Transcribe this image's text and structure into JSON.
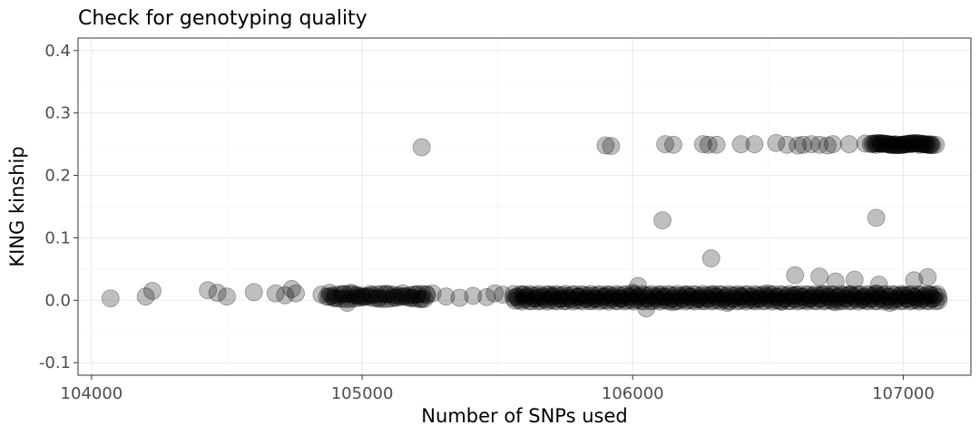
{
  "chart_data": {
    "type": "scatter",
    "title": "Check for genotyping quality",
    "xlabel": "Number of SNPs used",
    "ylabel": "KING kinship",
    "xlim": [
      103950,
      107250
    ],
    "ylim": [
      -0.12,
      0.42
    ],
    "xticks": [
      104000,
      105000,
      106000,
      107000
    ],
    "xtick_labels": [
      "104000",
      "105000",
      "106000",
      "107000"
    ],
    "yticks": [
      -0.1,
      0.0,
      0.1,
      0.2,
      0.3,
      0.4
    ],
    "ytick_labels": [
      "-0.1",
      "0.0",
      "0.1",
      "0.2",
      "0.3",
      "0.4"
    ],
    "grid": true,
    "legend": "none",
    "point_color": "#000000",
    "point_alpha": 0.25,
    "points": [
      [
        104070,
        0.003
      ],
      [
        104200,
        0.006
      ],
      [
        104225,
        0.015
      ],
      [
        104430,
        0.016
      ],
      [
        104465,
        0.012
      ],
      [
        104500,
        0.006
      ],
      [
        104600,
        0.013
      ],
      [
        104680,
        0.011
      ],
      [
        104715,
        0.008
      ],
      [
        104740,
        0.018
      ],
      [
        104755,
        0.011
      ],
      [
        104850,
        0.009
      ],
      [
        104880,
        0.012
      ],
      [
        104900,
        0.003
      ],
      [
        104930,
        0.01
      ],
      [
        104945,
        -0.004
      ],
      [
        104960,
        0.012
      ],
      [
        104980,
        0.007
      ],
      [
        105000,
        0.005
      ],
      [
        105030,
        0.01
      ],
      [
        105060,
        0.004
      ],
      [
        105090,
        0.01
      ],
      [
        105120,
        0.005
      ],
      [
        105150,
        0.011
      ],
      [
        105180,
        0.004
      ],
      [
        105200,
        0.009
      ],
      [
        105220,
        0.002
      ],
      [
        105240,
        0.008
      ],
      [
        105260,
        0.011
      ],
      [
        105310,
        0.006
      ],
      [
        105360,
        0.004
      ],
      [
        105410,
        0.007
      ],
      [
        105460,
        0.005
      ],
      [
        105490,
        0.011
      ],
      [
        105520,
        0.009
      ],
      [
        105560,
        0.004
      ],
      [
        105600,
        0.009
      ],
      [
        105650,
        0.004
      ],
      [
        105700,
        0.008
      ],
      [
        105750,
        0.003
      ],
      [
        105800,
        0.006
      ],
      [
        105850,
        0.002
      ],
      [
        105900,
        0.007
      ],
      [
        105950,
        0.003
      ],
      [
        106000,
        0.012
      ],
      [
        106050,
        -0.013
      ],
      [
        106100,
        0.006
      ],
      [
        106150,
        -0.003
      ],
      [
        106200,
        0.008
      ],
      [
        106250,
        0.002
      ],
      [
        106300,
        0.009
      ],
      [
        106350,
        -0.004
      ],
      [
        106400,
        0.007
      ],
      [
        106450,
        0.002
      ],
      [
        106500,
        0.011
      ],
      [
        106550,
        -0.002
      ],
      [
        106600,
        0.008
      ],
      [
        106650,
        0.003
      ],
      [
        106700,
        0.01
      ],
      [
        106750,
        -0.003
      ],
      [
        106800,
        0.009
      ],
      [
        106850,
        0.002
      ],
      [
        106900,
        0.011
      ],
      [
        106950,
        -0.004
      ],
      [
        107000,
        0.008
      ],
      [
        107050,
        0.003
      ],
      [
        107100,
        0.009
      ],
      [
        107130,
        0.005
      ],
      [
        105220,
        0.245
      ],
      [
        105900,
        0.248
      ],
      [
        105920,
        0.247
      ],
      [
        106120,
        0.25
      ],
      [
        106150,
        0.249
      ],
      [
        106260,
        0.25
      ],
      [
        106280,
        0.249
      ],
      [
        106310,
        0.249
      ],
      [
        106400,
        0.25
      ],
      [
        106450,
        0.25
      ],
      [
        106530,
        0.252
      ],
      [
        106570,
        0.249
      ],
      [
        106610,
        0.248
      ],
      [
        106630,
        0.249
      ],
      [
        106660,
        0.25
      ],
      [
        106690,
        0.249
      ],
      [
        106720,
        0.248
      ],
      [
        106740,
        0.25
      ],
      [
        106800,
        0.25
      ],
      [
        106860,
        0.251
      ],
      [
        106900,
        0.249
      ],
      [
        106920,
        0.25
      ],
      [
        106950,
        0.249
      ],
      [
        106970,
        0.25
      ],
      [
        107000,
        0.249
      ],
      [
        107030,
        0.25
      ],
      [
        107060,
        0.249
      ],
      [
        107080,
        0.25
      ],
      [
        107100,
        0.25
      ],
      [
        107120,
        0.249
      ],
      [
        106110,
        0.128
      ],
      [
        106900,
        0.132
      ],
      [
        106290,
        0.067
      ],
      [
        106600,
        0.04
      ],
      [
        106690,
        0.038
      ],
      [
        106820,
        0.033
      ],
      [
        107090,
        0.037
      ],
      [
        107040,
        0.032
      ],
      [
        106910,
        0.025
      ],
      [
        106020,
        0.023
      ],
      [
        106750,
        0.03
      ]
    ]
  }
}
